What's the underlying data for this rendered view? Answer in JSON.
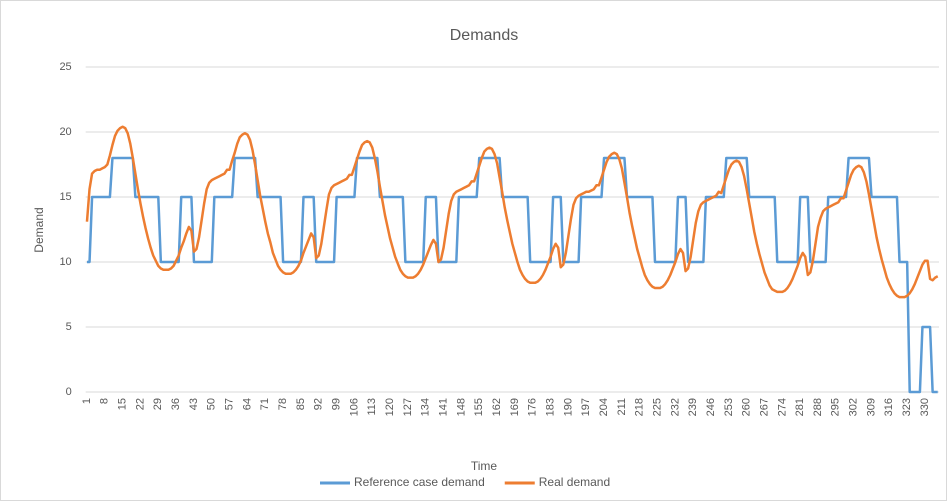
{
  "chart_data": {
    "type": "line",
    "title": "Demands",
    "x_label": "Time",
    "y_label": "Demand",
    "categories": [
      1,
      null,
      null,
      null,
      null,
      null,
      null,
      8,
      null,
      null,
      null,
      null,
      null,
      null,
      15,
      null,
      null,
      null,
      null,
      null,
      null,
      22,
      null,
      null,
      null,
      null,
      null,
      null,
      29,
      null,
      null,
      null,
      null,
      null,
      null,
      36,
      null,
      null,
      null,
      null,
      null,
      null,
      43,
      null,
      null,
      null,
      null,
      null,
      null,
      50,
      null,
      null,
      null,
      null,
      null,
      null,
      57,
      null,
      null,
      null,
      null,
      null,
      null,
      64,
      null,
      null,
      null,
      null,
      null,
      null,
      71,
      null,
      null,
      null,
      null,
      null,
      null,
      78,
      null,
      null,
      null,
      null,
      null,
      null,
      85,
      null,
      null,
      null,
      null,
      null,
      null,
      92,
      null,
      null,
      null,
      null,
      null,
      null,
      99,
      null,
      null,
      null,
      null,
      null,
      null,
      106,
      null,
      null,
      null,
      null,
      null,
      null,
      113,
      null,
      null,
      null,
      null,
      null,
      null,
      120,
      null,
      null,
      null,
      null,
      null,
      null,
      127,
      null,
      null,
      null,
      null,
      null,
      null,
      134,
      null,
      null,
      null,
      null,
      null,
      null,
      141,
      null,
      null,
      null,
      null,
      null,
      null,
      148,
      null,
      null,
      null,
      null,
      null,
      null,
      155,
      null,
      null,
      null,
      null,
      null,
      null,
      162,
      null,
      null,
      null,
      null,
      null,
      null,
      169,
      null,
      null,
      null,
      null,
      null,
      null,
      176,
      null,
      null,
      null,
      null,
      null,
      null,
      183,
      null,
      null,
      null,
      null,
      null,
      null,
      190,
      null,
      null,
      null,
      null,
      null,
      null,
      197,
      null,
      null,
      null,
      null,
      null,
      null,
      204,
      null,
      null,
      null,
      null,
      null,
      null,
      211,
      null,
      null,
      null,
      null,
      null,
      null,
      218,
      null,
      null,
      null,
      null,
      null,
      null,
      225,
      null,
      null,
      null,
      null,
      null,
      null,
      232,
      null,
      null,
      null,
      null,
      null,
      null,
      239,
      null,
      null,
      null,
      null,
      null,
      null,
      246,
      null,
      null,
      null,
      null,
      null,
      null,
      253,
      null,
      null,
      null,
      null,
      null,
      null,
      260,
      null,
      null,
      null,
      null,
      null,
      null,
      267,
      null,
      null,
      null,
      null,
      null,
      null,
      274,
      null,
      null,
      null,
      null,
      null,
      null,
      281,
      null,
      null,
      null,
      null,
      null,
      null,
      288,
      null,
      null,
      null,
      null,
      null,
      null,
      295,
      null,
      null,
      null,
      null,
      null,
      null,
      302,
      null,
      null,
      null,
      null,
      null,
      null,
      309,
      null,
      null,
      null,
      null,
      null,
      null,
      316,
      null,
      null,
      null,
      null,
      null,
      null,
      323,
      null,
      null,
      null,
      null,
      null,
      null,
      330,
      null,
      null,
      null,
      null,
      null
    ],
    "series": [
      {
        "name": "Reference case demand",
        "color": "#5b9bd5",
        "values": [
          10,
          10,
          15,
          15,
          15,
          15,
          15,
          15,
          15,
          15,
          18,
          18,
          18,
          18,
          18,
          18,
          18,
          18,
          18,
          15,
          15,
          15,
          15,
          15,
          15,
          15,
          15,
          15,
          15,
          10,
          10,
          10,
          10,
          10,
          10,
          10,
          10,
          15,
          15,
          15,
          15,
          15,
          10,
          10,
          10,
          10,
          10,
          10,
          10,
          10,
          15,
          15,
          15,
          15,
          15,
          15,
          15,
          15,
          18,
          18,
          18,
          18,
          18,
          18,
          18,
          18,
          18,
          15,
          15,
          15,
          15,
          15,
          15,
          15,
          15,
          15,
          15,
          10,
          10,
          10,
          10,
          10,
          10,
          10,
          10,
          15,
          15,
          15,
          15,
          15,
          10,
          10,
          10,
          10,
          10,
          10,
          10,
          10,
          15,
          15,
          15,
          15,
          15,
          15,
          15,
          15,
          18,
          18,
          18,
          18,
          18,
          18,
          18,
          18,
          18,
          15,
          15,
          15,
          15,
          15,
          15,
          15,
          15,
          15,
          15,
          10,
          10,
          10,
          10,
          10,
          10,
          10,
          10,
          15,
          15,
          15,
          15,
          15,
          10,
          10,
          10,
          10,
          10,
          10,
          10,
          10,
          15,
          15,
          15,
          15,
          15,
          15,
          15,
          15,
          18,
          18,
          18,
          18,
          18,
          18,
          18,
          18,
          18,
          15,
          15,
          15,
          15,
          15,
          15,
          15,
          15,
          15,
          15,
          15,
          10,
          10,
          10,
          10,
          10,
          10,
          10,
          10,
          10,
          15,
          15,
          15,
          15,
          10,
          10,
          10,
          10,
          10,
          10,
          10,
          15,
          15,
          15,
          15,
          15,
          15,
          15,
          15,
          15,
          18,
          18,
          18,
          18,
          18,
          18,
          18,
          18,
          18,
          15,
          15,
          15,
          15,
          15,
          15,
          15,
          15,
          15,
          15,
          15,
          10,
          10,
          10,
          10,
          10,
          10,
          10,
          10,
          10,
          15,
          15,
          15,
          15,
          10,
          10,
          10,
          10,
          10,
          10,
          10,
          15,
          15,
          15,
          15,
          15,
          15,
          15,
          15,
          18,
          18,
          18,
          18,
          18,
          18,
          18,
          18,
          18,
          15,
          15,
          15,
          15,
          15,
          15,
          15,
          15,
          15,
          15,
          15,
          10,
          10,
          10,
          10,
          10,
          10,
          10,
          10,
          10,
          15,
          15,
          15,
          15,
          10,
          10,
          10,
          10,
          10,
          10,
          10,
          15,
          15,
          15,
          15,
          15,
          15,
          15,
          15,
          18,
          18,
          18,
          18,
          18,
          18,
          18,
          18,
          18,
          15,
          15,
          15,
          15,
          15,
          15,
          15,
          15,
          15,
          15,
          15,
          10,
          10,
          10,
          10,
          0,
          0,
          0,
          0,
          0,
          5,
          5,
          5,
          5,
          0,
          0,
          0
        ]
      },
      {
        "name": "Real demand",
        "color": "#ed7d31",
        "values": [
          13.1,
          15.6,
          16.8,
          17.0,
          17.1,
          17.1,
          17.2,
          17.3,
          17.5,
          18.2,
          19.0,
          19.7,
          20.1,
          20.3,
          20.4,
          20.3,
          19.9,
          19.1,
          18.0,
          16.8,
          15.6,
          14.5,
          13.5,
          12.6,
          11.8,
          11.1,
          10.5,
          10.1,
          9.7,
          9.5,
          9.4,
          9.4,
          9.4,
          9.5,
          9.7,
          10.1,
          10.5,
          11.1,
          11.6,
          12.2,
          12.7,
          12.4,
          10.8,
          11.0,
          11.9,
          13.2,
          14.5,
          15.6,
          16.1,
          16.3,
          16.4,
          16.5,
          16.6,
          16.7,
          16.8,
          17.1,
          17.1,
          17.8,
          18.4,
          19.1,
          19.6,
          19.8,
          19.9,
          19.8,
          19.4,
          18.6,
          17.5,
          16.3,
          15.1,
          14.1,
          13.1,
          12.2,
          11.5,
          10.7,
          10.2,
          9.7,
          9.4,
          9.2,
          9.1,
          9.1,
          9.1,
          9.2,
          9.4,
          9.7,
          10.1,
          10.7,
          11.2,
          11.7,
          12.2,
          11.9,
          10.3,
          10.5,
          11.4,
          12.7,
          14.0,
          15.2,
          15.7,
          15.9,
          16.0,
          16.1,
          16.2,
          16.3,
          16.4,
          16.7,
          16.7,
          17.3,
          17.9,
          18.5,
          19.0,
          19.2,
          19.3,
          19.2,
          18.8,
          18.0,
          17.0,
          15.8,
          14.7,
          13.6,
          12.7,
          11.8,
          11.1,
          10.4,
          9.9,
          9.4,
          9.1,
          8.9,
          8.8,
          8.8,
          8.8,
          8.9,
          9.1,
          9.4,
          9.8,
          10.3,
          10.8,
          11.3,
          11.7,
          11.4,
          10.0,
          10.2,
          11.1,
          12.4,
          13.7,
          14.7,
          15.2,
          15.4,
          15.5,
          15.6,
          15.7,
          15.8,
          15.9,
          16.2,
          16.2,
          16.8,
          17.4,
          18.0,
          18.5,
          18.7,
          18.8,
          18.7,
          18.3,
          17.6,
          16.5,
          15.4,
          14.2,
          13.2,
          12.3,
          11.4,
          10.7,
          10.0,
          9.4,
          9.0,
          8.7,
          8.5,
          8.4,
          8.4,
          8.4,
          8.5,
          8.7,
          9.0,
          9.4,
          9.9,
          10.4,
          11.0,
          11.4,
          11.1,
          9.6,
          9.8,
          10.7,
          12.0,
          13.3,
          14.4,
          14.9,
          15.1,
          15.2,
          15.3,
          15.4,
          15.4,
          15.5,
          15.6,
          15.9,
          15.9,
          16.5,
          17.1,
          17.7,
          18.1,
          18.3,
          18.4,
          18.3,
          17.9,
          17.2,
          16.1,
          15.0,
          13.8,
          12.8,
          11.9,
          11.0,
          10.3,
          9.6,
          9.0,
          8.6,
          8.3,
          8.1,
          8.0,
          8.0,
          8.0,
          8.1,
          8.3,
          8.6,
          9.0,
          9.5,
          10.0,
          10.6,
          11.0,
          10.7,
          9.3,
          9.5,
          10.4,
          11.7,
          13.0,
          13.9,
          14.4,
          14.6,
          14.7,
          14.8,
          14.9,
          15.0,
          15.1,
          15.4,
          15.3,
          15.9,
          16.5,
          17.1,
          17.5,
          17.7,
          17.8,
          17.7,
          17.3,
          16.6,
          15.6,
          14.5,
          13.4,
          12.3,
          11.4,
          10.6,
          9.9,
          9.2,
          8.7,
          8.2,
          7.9,
          7.8,
          7.7,
          7.7,
          7.7,
          7.8,
          8.0,
          8.3,
          8.7,
          9.2,
          9.7,
          10.3,
          10.7,
          10.4,
          9.0,
          9.2,
          10.1,
          11.4,
          12.7,
          13.4,
          13.9,
          14.1,
          14.2,
          14.3,
          14.4,
          14.5,
          14.6,
          14.9,
          14.9,
          15.5,
          16.1,
          16.7,
          17.1,
          17.3,
          17.4,
          17.3,
          16.9,
          16.2,
          15.2,
          14.1,
          13.0,
          11.9,
          11.0,
          10.2,
          9.5,
          8.8,
          8.3,
          7.9,
          7.6,
          7.4,
          7.3,
          7.3,
          7.3,
          7.4,
          7.6,
          7.9,
          8.3,
          8.8,
          9.3,
          9.8,
          10.1,
          10.1,
          8.7,
          8.6,
          8.8,
          8.9
        ]
      }
    ],
    "ylim": [
      0,
      25
    ],
    "yticks": [
      0,
      5,
      10,
      15,
      20,
      25
    ],
    "grid": true,
    "legend": "bottom"
  }
}
